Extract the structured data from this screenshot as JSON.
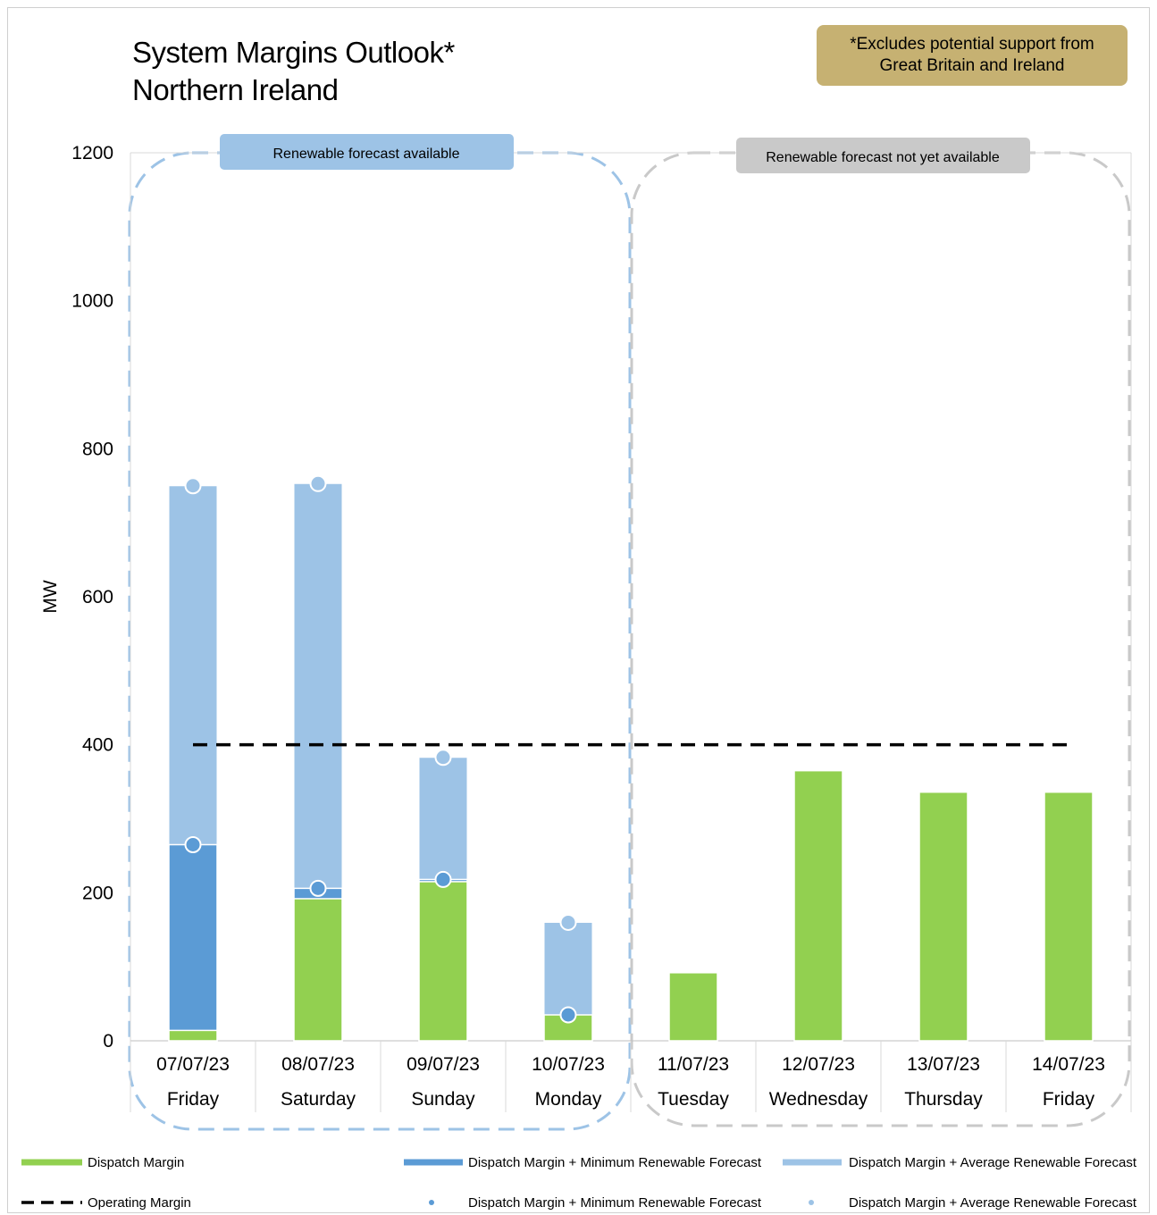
{
  "title_line1": "System Margins Outlook*",
  "title_line2": "Northern Ireland",
  "note_line1": "*Excludes potential support from",
  "note_line2": "Great Britain and Ireland",
  "regions": {
    "available": "Renewable forecast available",
    "not_available": "Renewable forecast not yet available"
  },
  "colors": {
    "dispatch": "#92d050",
    "min_renewable": "#5b9bd5",
    "avg_renewable": "#9dc3e6",
    "note_bg": "#c6b172",
    "region_available": "#9dc3e6",
    "region_not_available": "#c9c9c9"
  },
  "chart_data": {
    "type": "bar",
    "ylabel": "MW",
    "xlabel": "",
    "ylim": [
      0,
      1200
    ],
    "yticks": [
      0,
      200,
      400,
      600,
      800,
      1000,
      1200
    ],
    "categories": [
      "07/07/23",
      "08/07/23",
      "09/07/23",
      "10/07/23",
      "11/07/23",
      "12/07/23",
      "13/07/23",
      "14/07/23"
    ],
    "days": [
      "Friday",
      "Saturday",
      "Sunday",
      "Monday",
      "Tuesday",
      "Wednesday",
      "Thursday",
      "Friday"
    ],
    "series": [
      {
        "name": "Dispatch Margin",
        "values": [
          14,
          192,
          215,
          35,
          92,
          365,
          336,
          336
        ]
      },
      {
        "name": "Dispatch Margin + Minimum Renewable Forecast",
        "values": [
          265,
          206,
          218,
          35,
          null,
          null,
          null,
          null
        ]
      },
      {
        "name": "Dispatch Margin + Average Renewable Forecast",
        "values": [
          750,
          753,
          383,
          160,
          null,
          null,
          null,
          null
        ]
      },
      {
        "name": "Operating Margin",
        "values": [
          400,
          400,
          400,
          400,
          400,
          400,
          400,
          400
        ]
      }
    ],
    "legend": [
      {
        "label": "Dispatch Margin",
        "kind": "bar",
        "color": "#92d050"
      },
      {
        "label": "Dispatch Margin + Minimum Renewable Forecast",
        "kind": "bar",
        "color": "#5b9bd5"
      },
      {
        "label": "Dispatch Margin + Average Renewable Forecast",
        "kind": "bar",
        "color": "#9dc3e6"
      },
      {
        "label": "Operating Margin",
        "kind": "dashed-line",
        "color": "#000000"
      },
      {
        "label": "Dispatch Margin + Minimum Renewable Forecast",
        "kind": "marker",
        "color": "#5b9bd5"
      },
      {
        "label": "Dispatch Margin + Average Renewable Forecast",
        "kind": "marker",
        "color": "#9dc3e6"
      }
    ],
    "legend_position": "bottom",
    "grid": false
  }
}
